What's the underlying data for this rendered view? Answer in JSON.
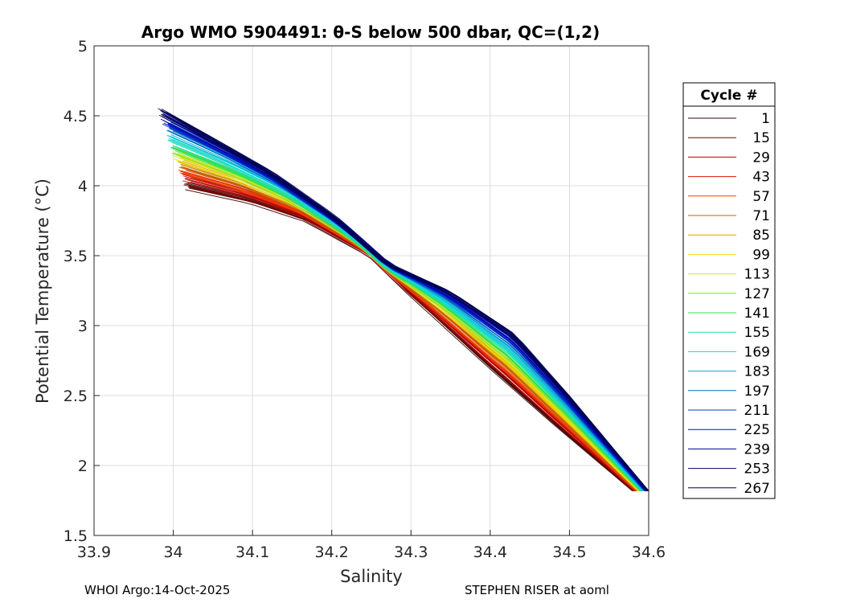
{
  "chart_data": {
    "type": "line",
    "title": "Argo WMO 5904491: θ-S below 500 dbar,  QC=(1,2)",
    "xlabel": "Salinity",
    "ylabel": "Potential Temperature (°C)",
    "xlim": [
      33.9,
      34.6
    ],
    "ylim": [
      1.5,
      5
    ],
    "x_ticks": [
      "33.9",
      "34",
      "34.1",
      "34.2",
      "34.3",
      "34.4",
      "34.5",
      "34.6"
    ],
    "y_ticks": [
      "1.5",
      "2",
      "2.5",
      "3",
      "3.5",
      "4",
      "4.5",
      "5"
    ],
    "grid": true,
    "legend": {
      "title": "Cycle #",
      "placement": "right",
      "entries": [
        {
          "label": "1",
          "color": "#3a0000"
        },
        {
          "label": "15",
          "color": "#7a0000"
        },
        {
          "label": "29",
          "color": "#b00000"
        },
        {
          "label": "43",
          "color": "#d81500"
        },
        {
          "label": "57",
          "color": "#ee4000"
        },
        {
          "label": "71",
          "color": "#c06000"
        },
        {
          "label": "85",
          "color": "#e0a000"
        },
        {
          "label": "99",
          "color": "#f0e000"
        },
        {
          "label": "113",
          "color": "#c8e830"
        },
        {
          "label": "127",
          "color": "#80e030"
        },
        {
          "label": "141",
          "color": "#30e050"
        },
        {
          "label": "155",
          "color": "#20e0a0"
        },
        {
          "label": "169",
          "color": "#10d8d8"
        },
        {
          "label": "183",
          "color": "#00a8d8"
        },
        {
          "label": "197",
          "color": "#0070b0"
        },
        {
          "label": "211",
          "color": "#0040c0"
        },
        {
          "label": "225",
          "color": "#0010d0"
        },
        {
          "label": "239",
          "color": "#000090"
        },
        {
          "label": "253",
          "color": "#000070"
        },
        {
          "label": "267",
          "color": "#000050"
        }
      ]
    },
    "series_profile": {
      "description_free": true,
      "early_cycle_curve": [
        [
          34.02,
          3.98
        ],
        [
          34.1,
          3.88
        ],
        [
          34.17,
          3.75
        ],
        [
          34.25,
          3.5
        ],
        [
          34.3,
          3.22
        ],
        [
          34.4,
          2.7
        ],
        [
          34.48,
          2.3
        ],
        [
          34.58,
          1.82
        ]
      ],
      "late_cycle_curve": [
        [
          33.985,
          4.56
        ],
        [
          34.05,
          4.35
        ],
        [
          34.12,
          4.12
        ],
        [
          34.2,
          3.8
        ],
        [
          34.27,
          3.45
        ],
        [
          34.35,
          3.25
        ],
        [
          34.43,
          2.95
        ],
        [
          34.5,
          2.5
        ],
        [
          34.6,
          1.82
        ]
      ]
    }
  },
  "footer": {
    "left": "WHOI Argo:14-Oct-2025",
    "right": "STEPHEN RISER at aoml"
  }
}
